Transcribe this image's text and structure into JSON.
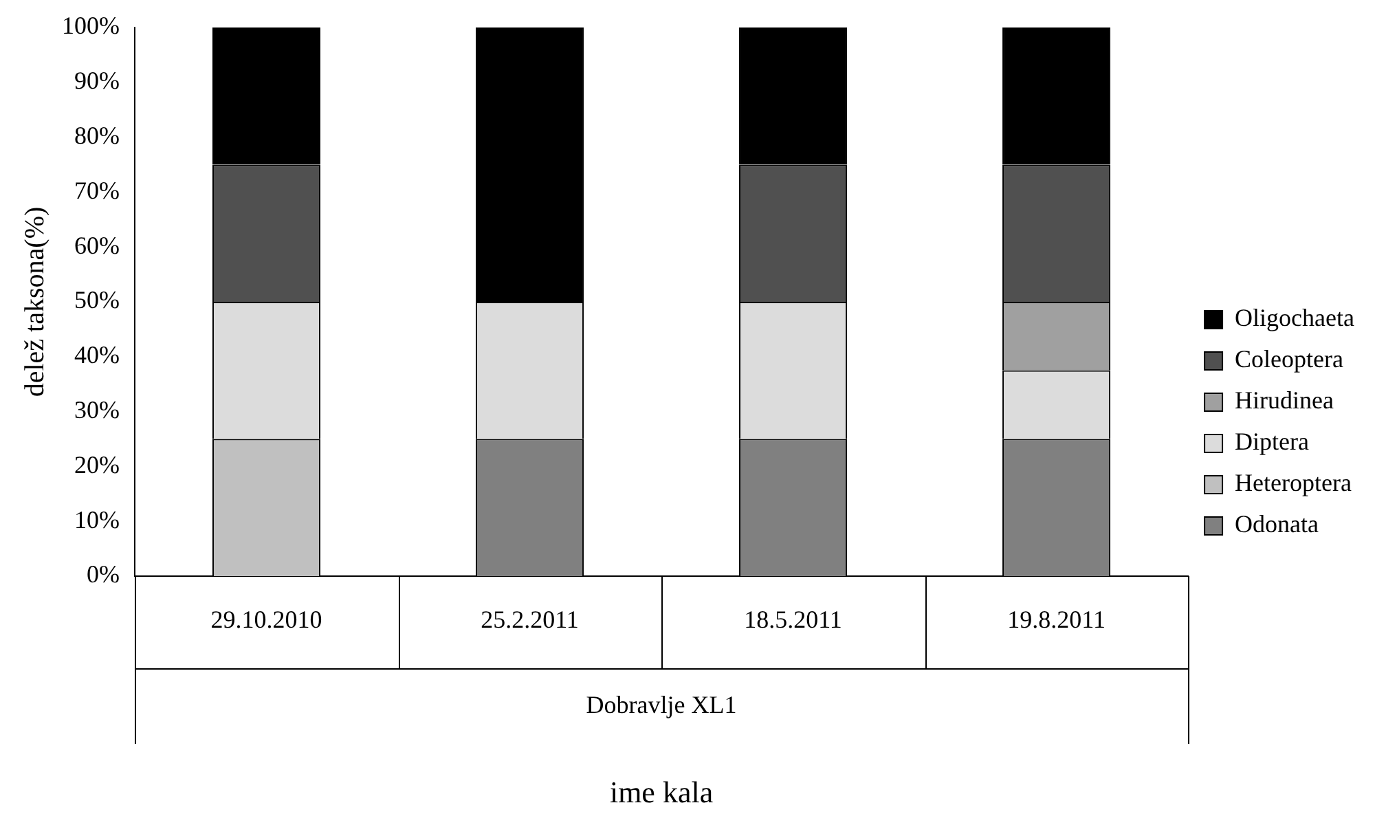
{
  "chart_data": {
    "type": "bar",
    "stacked": true,
    "ylabel": "delež taksona(%)",
    "xlabel": "ime kala",
    "annotations": [
      "Dobravlje XL1"
    ],
    "categories": [
      "29.10.2010",
      "25.2.2011",
      "18.5.2011",
      "19.8.2011"
    ],
    "series": [
      {
        "name": "Odonata",
        "color": "#808080",
        "values": [
          0,
          25,
          25,
          25
        ]
      },
      {
        "name": "Heteroptera",
        "color": "#c0c0c0",
        "values": [
          25,
          0,
          0,
          0
        ]
      },
      {
        "name": "Diptera",
        "color": "#dcdcdc",
        "values": [
          25,
          25,
          25,
          12.5
        ]
      },
      {
        "name": "Hirudinea",
        "color": "#a0a0a0",
        "values": [
          0,
          0,
          0,
          12.5
        ]
      },
      {
        "name": "Coleoptera",
        "color": "#505050",
        "values": [
          25,
          0,
          25,
          25
        ]
      },
      {
        "name": "Oligochaeta",
        "color": "#000000",
        "values": [
          25,
          50,
          25,
          25
        ]
      }
    ],
    "ylim": [
      0,
      100
    ],
    "yticks": [
      {
        "value": 0,
        "label": "0%"
      },
      {
        "value": 10,
        "label": "10%"
      },
      {
        "value": 20,
        "label": "20%"
      },
      {
        "value": 30,
        "label": "30%"
      },
      {
        "value": 40,
        "label": "40%"
      },
      {
        "value": 50,
        "label": "50%"
      },
      {
        "value": 60,
        "label": "60%"
      },
      {
        "value": 70,
        "label": "70%"
      },
      {
        "value": 80,
        "label": "80%"
      },
      {
        "value": 90,
        "label": "90%"
      },
      {
        "value": 100,
        "label": "100%"
      }
    ],
    "grid": false,
    "legend": "right"
  }
}
